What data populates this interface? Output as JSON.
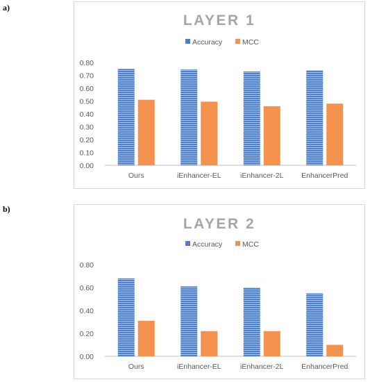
{
  "panels": [
    {
      "label": "a)"
    },
    {
      "label": "b)"
    }
  ],
  "colors": {
    "accuracy": "#4a7fd1",
    "mcc": "#f4914d",
    "axis": "#bfbfbf"
  },
  "chart_data": [
    {
      "type": "bar",
      "title": "LAYER 1",
      "categories": [
        "Ours",
        "iEnhancer-EL",
        "iEnhancer-2L",
        "EnhancerPred"
      ],
      "series": [
        {
          "name": "Accuracy",
          "values": [
            0.75,
            0.745,
            0.73,
            0.74
          ]
        },
        {
          "name": "MCC",
          "values": [
            0.51,
            0.495,
            0.46,
            0.48
          ]
        }
      ],
      "yticks": [
        "0.00",
        "0.10",
        "0.20",
        "0.30",
        "0.40",
        "0.50",
        "0.60",
        "0.70",
        "0.80"
      ],
      "ylim": [
        0,
        0.8
      ],
      "legend": "top",
      "grid": false
    },
    {
      "type": "bar",
      "title": "LAYER 2",
      "categories": [
        "Ours",
        "iEnhancer-EL",
        "iEnhancer-2L",
        "EnhancerPred"
      ],
      "series": [
        {
          "name": "Accuracy",
          "values": [
            0.68,
            0.61,
            0.6,
            0.55
          ]
        },
        {
          "name": "MCC",
          "values": [
            0.31,
            0.22,
            0.22,
            0.1
          ]
        }
      ],
      "yticks": [
        "0.00",
        "0.20",
        "0.40",
        "0.60",
        "0.80"
      ],
      "ylim": [
        0,
        0.8
      ],
      "legend": "top",
      "grid": false
    }
  ]
}
